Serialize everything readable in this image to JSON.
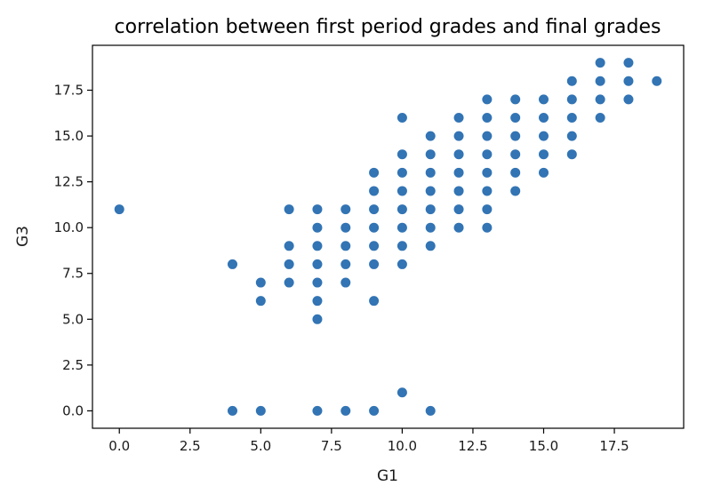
{
  "chart_data": {
    "type": "scatter",
    "title": "correlation between first period grades and final grades",
    "xlabel": "G1",
    "ylabel": "G3",
    "xlim": [
      -0.95,
      19.95
    ],
    "ylim": [
      -0.95,
      19.95
    ],
    "xticks": [
      0,
      2.5,
      5,
      7.5,
      10,
      12.5,
      15,
      17.5
    ],
    "xtick_labels": [
      "0.0",
      "2.5",
      "5.0",
      "7.5",
      "10.0",
      "12.5",
      "15.0",
      "17.5"
    ],
    "yticks": [
      0,
      2.5,
      5,
      7.5,
      10,
      12.5,
      15,
      17.5
    ],
    "ytick_labels": [
      "0.0",
      "2.5",
      "5.0",
      "7.5",
      "10.0",
      "12.5",
      "15.0",
      "17.5"
    ],
    "grid": false,
    "marker_color": "#3274b4",
    "points": [
      [
        0,
        11
      ],
      [
        4,
        0
      ],
      [
        4,
        8
      ],
      [
        5,
        0
      ],
      [
        5,
        6
      ],
      [
        5,
        7
      ],
      [
        6,
        7
      ],
      [
        6,
        8
      ],
      [
        6,
        9
      ],
      [
        6,
        11
      ],
      [
        7,
        0
      ],
      [
        7,
        5
      ],
      [
        7,
        6
      ],
      [
        7,
        7
      ],
      [
        7,
        8
      ],
      [
        7,
        9
      ],
      [
        7,
        10
      ],
      [
        7,
        11
      ],
      [
        8,
        0
      ],
      [
        8,
        7
      ],
      [
        8,
        8
      ],
      [
        8,
        9
      ],
      [
        8,
        10
      ],
      [
        8,
        11
      ],
      [
        9,
        0
      ],
      [
        9,
        6
      ],
      [
        9,
        8
      ],
      [
        9,
        9
      ],
      [
        9,
        10
      ],
      [
        9,
        11
      ],
      [
        9,
        12
      ],
      [
        9,
        13
      ],
      [
        10,
        1
      ],
      [
        10,
        8
      ],
      [
        10,
        9
      ],
      [
        10,
        10
      ],
      [
        10,
        11
      ],
      [
        10,
        12
      ],
      [
        10,
        13
      ],
      [
        10,
        14
      ],
      [
        10,
        16
      ],
      [
        11,
        0
      ],
      [
        11,
        9
      ],
      [
        11,
        10
      ],
      [
        11,
        11
      ],
      [
        11,
        12
      ],
      [
        11,
        13
      ],
      [
        11,
        14
      ],
      [
        11,
        15
      ],
      [
        12,
        10
      ],
      [
        12,
        11
      ],
      [
        12,
        12
      ],
      [
        12,
        13
      ],
      [
        12,
        14
      ],
      [
        12,
        15
      ],
      [
        12,
        16
      ],
      [
        13,
        10
      ],
      [
        13,
        11
      ],
      [
        13,
        12
      ],
      [
        13,
        13
      ],
      [
        13,
        14
      ],
      [
        13,
        15
      ],
      [
        13,
        16
      ],
      [
        13,
        17
      ],
      [
        14,
        12
      ],
      [
        14,
        13
      ],
      [
        14,
        14
      ],
      [
        14,
        15
      ],
      [
        14,
        16
      ],
      [
        14,
        17
      ],
      [
        15,
        13
      ],
      [
        15,
        14
      ],
      [
        15,
        15
      ],
      [
        15,
        16
      ],
      [
        15,
        17
      ],
      [
        16,
        14
      ],
      [
        16,
        15
      ],
      [
        16,
        16
      ],
      [
        16,
        17
      ],
      [
        16,
        18
      ],
      [
        17,
        16
      ],
      [
        17,
        17
      ],
      [
        17,
        18
      ],
      [
        17,
        19
      ],
      [
        18,
        17
      ],
      [
        18,
        18
      ],
      [
        18,
        19
      ],
      [
        19,
        18
      ]
    ]
  }
}
